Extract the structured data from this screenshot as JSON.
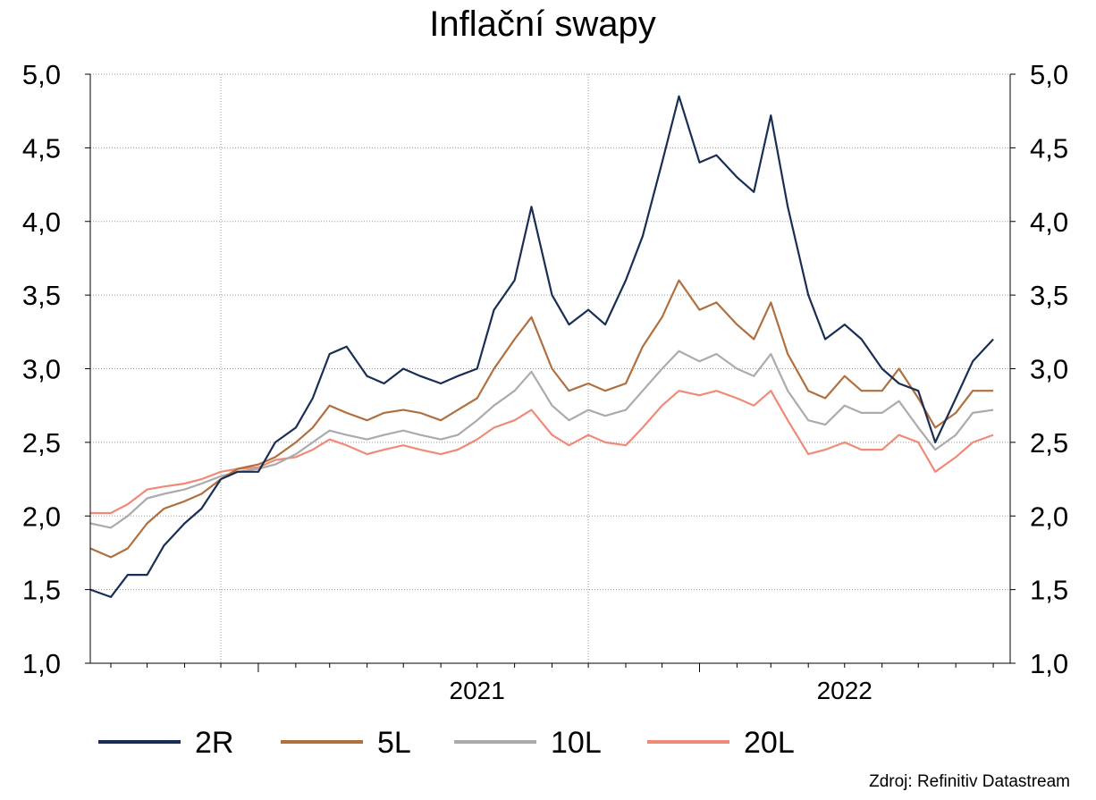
{
  "chart_data": {
    "type": "line",
    "title": "Inflační swapy",
    "source": "Zdroj: Refinitiv Datastream",
    "x_range": [
      "2020-08-15",
      "2022-09-15"
    ],
    "x_tick_labels": [
      "2021",
      "2022"
    ],
    "y_tick_labels": [
      "1,0",
      "1,5",
      "2,0",
      "2,5",
      "3,0",
      "3,5",
      "4,0",
      "4,5",
      "5,0"
    ],
    "ylim": [
      1.0,
      5.0
    ],
    "grid": true,
    "legend_position": "bottom",
    "series": [
      {
        "name": "2R",
        "color": "#1a2e55",
        "points": [
          [
            "2020-08-15",
            1.5
          ],
          [
            "2020-09-01",
            1.45
          ],
          [
            "2020-09-15",
            1.6
          ],
          [
            "2020-10-01",
            1.6
          ],
          [
            "2020-10-15",
            1.8
          ],
          [
            "2020-11-01",
            1.95
          ],
          [
            "2020-11-15",
            2.05
          ],
          [
            "2020-12-01",
            2.25
          ],
          [
            "2020-12-15",
            2.3
          ],
          [
            "2021-01-01",
            2.3
          ],
          [
            "2021-01-15",
            2.5
          ],
          [
            "2021-02-01",
            2.6
          ],
          [
            "2021-02-15",
            2.8
          ],
          [
            "2021-03-01",
            3.1
          ],
          [
            "2021-03-15",
            3.15
          ],
          [
            "2021-04-01",
            2.95
          ],
          [
            "2021-04-15",
            2.9
          ],
          [
            "2021-05-01",
            3.0
          ],
          [
            "2021-05-15",
            2.95
          ],
          [
            "2021-06-01",
            2.9
          ],
          [
            "2021-06-15",
            2.95
          ],
          [
            "2021-07-01",
            3.0
          ],
          [
            "2021-07-15",
            3.4
          ],
          [
            "2021-08-01",
            3.6
          ],
          [
            "2021-08-15",
            4.1
          ],
          [
            "2021-09-01",
            3.5
          ],
          [
            "2021-09-15",
            3.3
          ],
          [
            "2021-10-01",
            3.4
          ],
          [
            "2021-10-15",
            3.3
          ],
          [
            "2021-11-01",
            3.6
          ],
          [
            "2021-11-15",
            3.9
          ],
          [
            "2021-12-01",
            4.4
          ],
          [
            "2021-12-15",
            4.85
          ],
          [
            "2022-01-01",
            4.4
          ],
          [
            "2022-01-15",
            4.45
          ],
          [
            "2022-02-01",
            4.3
          ],
          [
            "2022-02-15",
            4.2
          ],
          [
            "2022-03-01",
            4.72
          ],
          [
            "2022-03-15",
            4.1
          ],
          [
            "2022-04-01",
            3.5
          ],
          [
            "2022-04-15",
            3.2
          ],
          [
            "2022-05-01",
            3.3
          ],
          [
            "2022-05-15",
            3.2
          ],
          [
            "2022-06-01",
            3.0
          ],
          [
            "2022-06-15",
            2.9
          ],
          [
            "2022-07-01",
            2.85
          ],
          [
            "2022-07-15",
            2.5
          ],
          [
            "2022-08-01",
            2.8
          ],
          [
            "2022-08-15",
            3.05
          ],
          [
            "2022-09-01",
            3.2
          ]
        ]
      },
      {
        "name": "5L",
        "color": "#b06f3f",
        "points": [
          [
            "2020-08-15",
            1.78
          ],
          [
            "2020-09-01",
            1.72
          ],
          [
            "2020-09-15",
            1.78
          ],
          [
            "2020-10-01",
            1.95
          ],
          [
            "2020-10-15",
            2.05
          ],
          [
            "2020-11-01",
            2.1
          ],
          [
            "2020-11-15",
            2.15
          ],
          [
            "2020-12-01",
            2.25
          ],
          [
            "2020-12-15",
            2.32
          ],
          [
            "2021-01-01",
            2.35
          ],
          [
            "2021-01-15",
            2.4
          ],
          [
            "2021-02-01",
            2.5
          ],
          [
            "2021-02-15",
            2.6
          ],
          [
            "2021-03-01",
            2.75
          ],
          [
            "2021-03-15",
            2.7
          ],
          [
            "2021-04-01",
            2.65
          ],
          [
            "2021-04-15",
            2.7
          ],
          [
            "2021-05-01",
            2.72
          ],
          [
            "2021-05-15",
            2.7
          ],
          [
            "2021-06-01",
            2.65
          ],
          [
            "2021-06-15",
            2.72
          ],
          [
            "2021-07-01",
            2.8
          ],
          [
            "2021-07-15",
            3.0
          ],
          [
            "2021-08-01",
            3.2
          ],
          [
            "2021-08-15",
            3.35
          ],
          [
            "2021-09-01",
            3.0
          ],
          [
            "2021-09-15",
            2.85
          ],
          [
            "2021-10-01",
            2.9
          ],
          [
            "2021-10-15",
            2.85
          ],
          [
            "2021-11-01",
            2.9
          ],
          [
            "2021-11-15",
            3.15
          ],
          [
            "2021-12-01",
            3.35
          ],
          [
            "2021-12-15",
            3.6
          ],
          [
            "2022-01-01",
            3.4
          ],
          [
            "2022-01-15",
            3.45
          ],
          [
            "2022-02-01",
            3.3
          ],
          [
            "2022-02-15",
            3.2
          ],
          [
            "2022-03-01",
            3.45
          ],
          [
            "2022-03-15",
            3.1
          ],
          [
            "2022-04-01",
            2.85
          ],
          [
            "2022-04-15",
            2.8
          ],
          [
            "2022-05-01",
            2.95
          ],
          [
            "2022-05-15",
            2.85
          ],
          [
            "2022-06-01",
            2.85
          ],
          [
            "2022-06-15",
            3.0
          ],
          [
            "2022-07-01",
            2.8
          ],
          [
            "2022-07-15",
            2.6
          ],
          [
            "2022-08-01",
            2.7
          ],
          [
            "2022-08-15",
            2.85
          ],
          [
            "2022-09-01",
            2.85
          ]
        ]
      },
      {
        "name": "10L",
        "color": "#ababab",
        "points": [
          [
            "2020-08-15",
            1.95
          ],
          [
            "2020-09-01",
            1.92
          ],
          [
            "2020-09-15",
            2.0
          ],
          [
            "2020-10-01",
            2.12
          ],
          [
            "2020-10-15",
            2.15
          ],
          [
            "2020-11-01",
            2.18
          ],
          [
            "2020-11-15",
            2.22
          ],
          [
            "2020-12-01",
            2.27
          ],
          [
            "2020-12-15",
            2.3
          ],
          [
            "2021-01-01",
            2.32
          ],
          [
            "2021-01-15",
            2.35
          ],
          [
            "2021-02-01",
            2.42
          ],
          [
            "2021-02-15",
            2.5
          ],
          [
            "2021-03-01",
            2.58
          ],
          [
            "2021-03-15",
            2.55
          ],
          [
            "2021-04-01",
            2.52
          ],
          [
            "2021-04-15",
            2.55
          ],
          [
            "2021-05-01",
            2.58
          ],
          [
            "2021-05-15",
            2.55
          ],
          [
            "2021-06-01",
            2.52
          ],
          [
            "2021-06-15",
            2.55
          ],
          [
            "2021-07-01",
            2.65
          ],
          [
            "2021-07-15",
            2.75
          ],
          [
            "2021-08-01",
            2.85
          ],
          [
            "2021-08-15",
            2.98
          ],
          [
            "2021-09-01",
            2.75
          ],
          [
            "2021-09-15",
            2.65
          ],
          [
            "2021-10-01",
            2.72
          ],
          [
            "2021-10-15",
            2.68
          ],
          [
            "2021-11-01",
            2.72
          ],
          [
            "2021-11-15",
            2.85
          ],
          [
            "2021-12-01",
            3.0
          ],
          [
            "2021-12-15",
            3.12
          ],
          [
            "2022-01-01",
            3.05
          ],
          [
            "2022-01-15",
            3.1
          ],
          [
            "2022-02-01",
            3.0
          ],
          [
            "2022-02-15",
            2.95
          ],
          [
            "2022-03-01",
            3.1
          ],
          [
            "2022-03-15",
            2.85
          ],
          [
            "2022-04-01",
            2.65
          ],
          [
            "2022-04-15",
            2.62
          ],
          [
            "2022-05-01",
            2.75
          ],
          [
            "2022-05-15",
            2.7
          ],
          [
            "2022-06-01",
            2.7
          ],
          [
            "2022-06-15",
            2.78
          ],
          [
            "2022-07-01",
            2.6
          ],
          [
            "2022-07-15",
            2.45
          ],
          [
            "2022-08-01",
            2.55
          ],
          [
            "2022-08-15",
            2.7
          ],
          [
            "2022-09-01",
            2.72
          ]
        ]
      },
      {
        "name": "20L",
        "color": "#f08a78",
        "points": [
          [
            "2020-08-15",
            2.02
          ],
          [
            "2020-09-01",
            2.02
          ],
          [
            "2020-09-15",
            2.08
          ],
          [
            "2020-10-01",
            2.18
          ],
          [
            "2020-10-15",
            2.2
          ],
          [
            "2020-11-01",
            2.22
          ],
          [
            "2020-11-15",
            2.25
          ],
          [
            "2020-12-01",
            2.3
          ],
          [
            "2020-12-15",
            2.32
          ],
          [
            "2021-01-01",
            2.33
          ],
          [
            "2021-01-15",
            2.38
          ],
          [
            "2021-02-01",
            2.4
          ],
          [
            "2021-02-15",
            2.45
          ],
          [
            "2021-03-01",
            2.52
          ],
          [
            "2021-03-15",
            2.48
          ],
          [
            "2021-04-01",
            2.42
          ],
          [
            "2021-04-15",
            2.45
          ],
          [
            "2021-05-01",
            2.48
          ],
          [
            "2021-05-15",
            2.45
          ],
          [
            "2021-06-01",
            2.42
          ],
          [
            "2021-06-15",
            2.45
          ],
          [
            "2021-07-01",
            2.52
          ],
          [
            "2021-07-15",
            2.6
          ],
          [
            "2021-08-01",
            2.65
          ],
          [
            "2021-08-15",
            2.72
          ],
          [
            "2021-09-01",
            2.55
          ],
          [
            "2021-09-15",
            2.48
          ],
          [
            "2021-10-01",
            2.55
          ],
          [
            "2021-10-15",
            2.5
          ],
          [
            "2021-11-01",
            2.48
          ],
          [
            "2021-11-15",
            2.6
          ],
          [
            "2021-12-01",
            2.75
          ],
          [
            "2021-12-15",
            2.85
          ],
          [
            "2022-01-01",
            2.82
          ],
          [
            "2022-01-15",
            2.85
          ],
          [
            "2022-02-01",
            2.8
          ],
          [
            "2022-02-15",
            2.75
          ],
          [
            "2022-03-01",
            2.85
          ],
          [
            "2022-03-15",
            2.65
          ],
          [
            "2022-04-01",
            2.42
          ],
          [
            "2022-04-15",
            2.45
          ],
          [
            "2022-05-01",
            2.5
          ],
          [
            "2022-05-15",
            2.45
          ],
          [
            "2022-06-01",
            2.45
          ],
          [
            "2022-06-15",
            2.55
          ],
          [
            "2022-07-01",
            2.5
          ],
          [
            "2022-07-15",
            2.3
          ],
          [
            "2022-08-01",
            2.4
          ],
          [
            "2022-08-15",
            2.5
          ],
          [
            "2022-09-01",
            2.55
          ]
        ]
      }
    ]
  }
}
